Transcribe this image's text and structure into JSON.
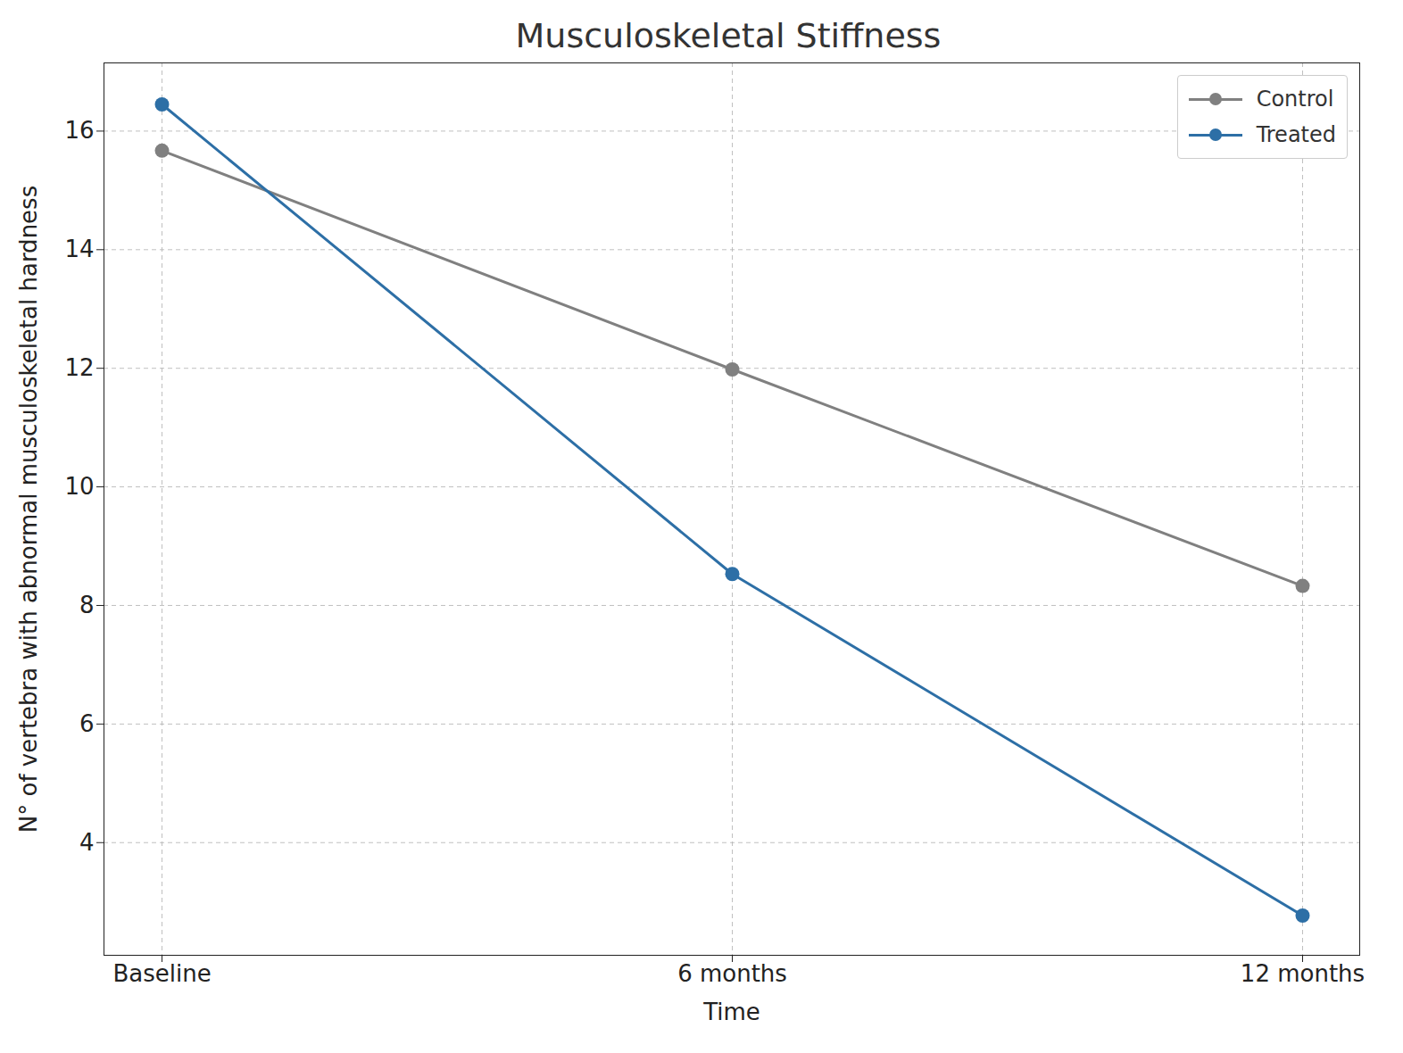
{
  "chart_data": {
    "type": "line",
    "title": "Musculoskeletal Stiffness",
    "x_label": "Time",
    "y_label": "N° of vertebra with abnormal musculoskeletal hardness",
    "categories": [
      "Baseline",
      "6 months",
      "12 months"
    ],
    "series": [
      {
        "name": "Control",
        "color": "#808080",
        "values": [
          15.67,
          11.98,
          8.33
        ],
        "marker": "o",
        "line_style": "solid"
      },
      {
        "name": "Treated",
        "color": "#2d6fa6",
        "values": [
          16.45,
          8.53,
          2.77
        ],
        "marker": "o",
        "line_style": "solid"
      }
    ],
    "ylim": [
      2.1,
      17.15
    ],
    "yticks": [
      4,
      6,
      8,
      10,
      12,
      14,
      16
    ],
    "grid": true,
    "legend": "upper right"
  }
}
